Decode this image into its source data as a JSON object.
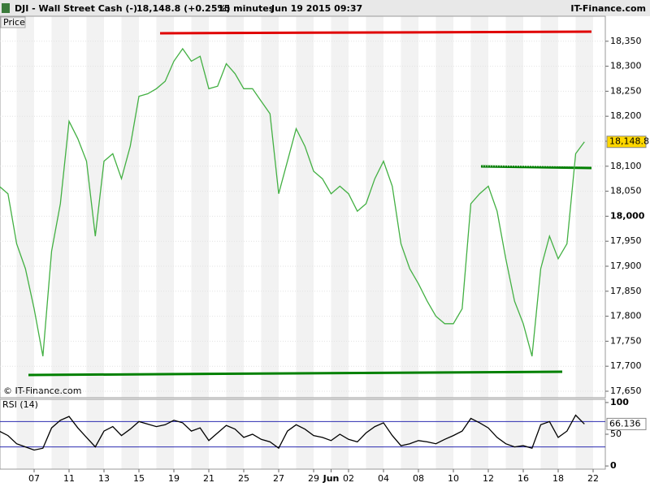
{
  "header": {
    "title": "DJI - Wall Street Cash (-)",
    "price": "18,148.8 (+0.25%)",
    "interval": "15 minutes",
    "date": "Jun 19 2015 09:37",
    "brand": "IT-Finance.com"
  },
  "chart_data": [
    {
      "type": "line",
      "title": "Price",
      "watermark": "© IT-Finance.com",
      "color": "#43b043",
      "categories": [
        null,
        null,
        null,
        null,
        "07",
        null,
        null,
        null,
        "11",
        null,
        null,
        null,
        "13",
        null,
        null,
        null,
        "15",
        null,
        null,
        null,
        "19",
        null,
        null,
        null,
        "21",
        null,
        null,
        null,
        "25",
        null,
        null,
        null,
        "27",
        null,
        null,
        null,
        "29",
        null,
        "Jun",
        null,
        "02",
        null,
        null,
        null,
        "04",
        null,
        null,
        null,
        "08",
        null,
        null,
        null,
        "10",
        null,
        null,
        null,
        "12",
        null,
        null,
        null,
        "16",
        null,
        null,
        null,
        "18",
        null,
        null,
        null,
        "22"
      ],
      "values": [
        18060,
        18045,
        17945,
        17895,
        17815,
        17720,
        17930,
        18025,
        18190,
        18155,
        18110,
        17960,
        18110,
        18125,
        18075,
        18140,
        18240,
        18245,
        18255,
        18270,
        18310,
        18335,
        18310,
        18320,
        18255,
        18260,
        18305,
        18285,
        18255,
        18255,
        18230,
        18205,
        18045,
        18110,
        18175,
        18140,
        18090,
        18075,
        18045,
        18060,
        18045,
        18010,
        18025,
        18075,
        18110,
        18060,
        17945,
        17895,
        17865,
        17830,
        17800,
        17785,
        17785,
        17815,
        18025,
        18045,
        18060,
        18010,
        17915,
        17830,
        17785,
        17720,
        17895,
        17960,
        17915,
        17945,
        18125,
        18148.8,
        null
      ],
      "last_label": "18,148.8",
      "ylim": [
        17637,
        18400
      ],
      "yticks": [
        {
          "value": 17650,
          "label": "17,650"
        },
        {
          "value": 17700,
          "label": "17,700"
        },
        {
          "value": 17750,
          "label": "17,750"
        },
        {
          "value": 17800,
          "label": "17,800"
        },
        {
          "value": 17850,
          "label": "17,850"
        },
        {
          "value": 17900,
          "label": "17,900"
        },
        {
          "value": 17950,
          "label": "17,950"
        },
        {
          "value": 18000,
          "label": "18,000"
        },
        {
          "value": 18050,
          "label": "18,050"
        },
        {
          "value": 18100,
          "label": "18,100"
        },
        {
          "value": 18150,
          "label": "18,150"
        },
        {
          "value": 18200,
          "label": "18,200"
        },
        {
          "value": 18250,
          "label": "18,250"
        },
        {
          "value": 18300,
          "label": "18,300"
        },
        {
          "value": 18350,
          "label": "18,350"
        }
      ],
      "grid": true
    },
    {
      "type": "line",
      "title": "RSI (14)",
      "color": "#000000",
      "values": [
        55,
        48,
        35,
        30,
        25,
        28,
        60,
        72,
        78,
        60,
        45,
        30,
        55,
        62,
        48,
        58,
        70,
        66,
        62,
        65,
        72,
        68,
        55,
        60,
        40,
        52,
        64,
        58,
        45,
        50,
        42,
        38,
        28,
        55,
        65,
        58,
        48,
        45,
        40,
        50,
        42,
        38,
        52,
        62,
        68,
        48,
        32,
        35,
        40,
        38,
        35,
        42,
        48,
        55,
        75,
        68,
        60,
        45,
        35,
        30,
        32,
        28,
        65,
        70,
        45,
        55,
        80,
        66.136,
        null
      ],
      "last_label": "66.136",
      "levels": [
        30,
        70
      ],
      "level_color": "#2b2bb0",
      "ylim": [
        -5,
        105
      ],
      "yticks": [
        0,
        50,
        100
      ]
    }
  ]
}
